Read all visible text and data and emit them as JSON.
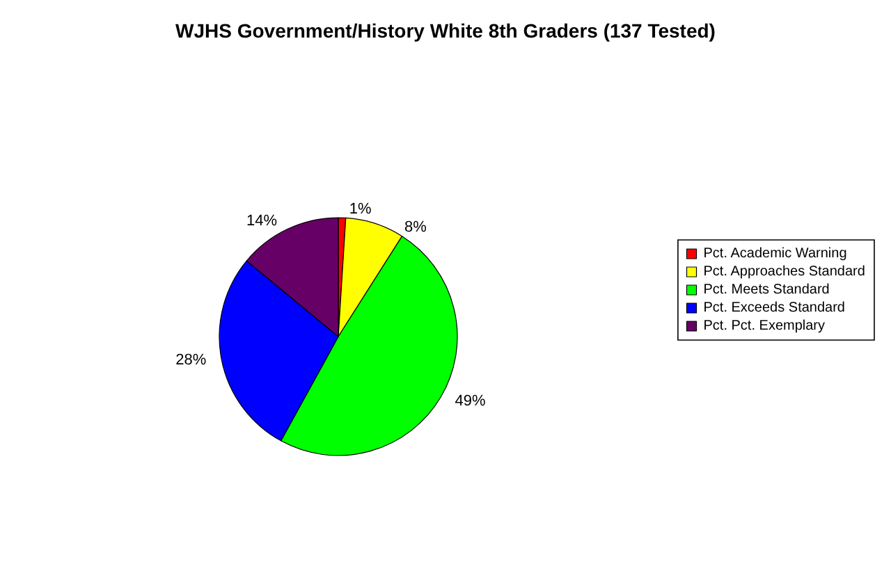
{
  "chart_data": {
    "type": "pie",
    "title": "WJHS Government/History White 8th Graders (137 Tested)",
    "categories": [
      "Pct. Academic Warning",
      "Pct. Approaches Standard",
      "Pct. Meets Standard",
      "Pct. Exceeds Standard",
      "Pct. Pct. Exemplary"
    ],
    "values": [
      1,
      8,
      49,
      28,
      14
    ],
    "value_labels": [
      "1%",
      "8%",
      "49%",
      "28%",
      "14%"
    ],
    "colors": [
      "#ff0000",
      "#ffff00",
      "#00ff00",
      "#0000ff",
      "#660066"
    ],
    "legend": "right"
  }
}
